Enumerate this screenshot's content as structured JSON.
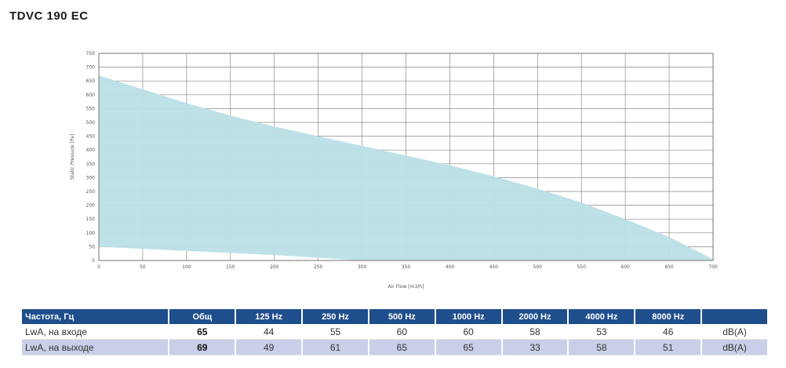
{
  "title": "TDVC 190 EC",
  "chart_data": {
    "type": "area",
    "xlabel": "Air Flow [m3/h]",
    "ylabel": "Static Pressure [Pa]",
    "xlim": [
      0,
      700
    ],
    "ylim": [
      0,
      750
    ],
    "x_ticks": [
      0,
      50,
      100,
      150,
      200,
      250,
      300,
      350,
      400,
      450,
      500,
      550,
      600,
      650,
      700
    ],
    "y_ticks": [
      0,
      50,
      100,
      150,
      200,
      250,
      300,
      350,
      400,
      450,
      500,
      550,
      600,
      650,
      700,
      750
    ],
    "grid": true,
    "fill_color": "#b9dfe6",
    "upper_curve": [
      {
        "x": 0,
        "y": 670
      },
      {
        "x": 50,
        "y": 620
      },
      {
        "x": 100,
        "y": 570
      },
      {
        "x": 150,
        "y": 525
      },
      {
        "x": 200,
        "y": 485
      },
      {
        "x": 250,
        "y": 450
      },
      {
        "x": 300,
        "y": 415
      },
      {
        "x": 350,
        "y": 380
      },
      {
        "x": 400,
        "y": 345
      },
      {
        "x": 450,
        "y": 305
      },
      {
        "x": 500,
        "y": 260
      },
      {
        "x": 550,
        "y": 210
      },
      {
        "x": 600,
        "y": 150
      },
      {
        "x": 650,
        "y": 85
      },
      {
        "x": 700,
        "y": 5
      }
    ],
    "lower_curve": [
      {
        "x": 0,
        "y": 50
      },
      {
        "x": 100,
        "y": 35
      },
      {
        "x": 200,
        "y": 20
      },
      {
        "x": 300,
        "y": 0
      },
      {
        "x": 700,
        "y": 0
      }
    ]
  },
  "table": {
    "headers": [
      "Частота, Гц",
      "Общ",
      "125 Hz",
      "250 Hz",
      "500 Hz",
      "1000 Hz",
      "2000 Hz",
      "4000 Hz",
      "8000 Hz",
      ""
    ],
    "rows": [
      {
        "label": "LwA, на входе",
        "total": "65",
        "values": [
          "44",
          "55",
          "60",
          "60",
          "58",
          "53",
          "46"
        ],
        "unit": "dB(A)"
      },
      {
        "label": "LwA, на выходе",
        "total": "69",
        "values": [
          "49",
          "61",
          "65",
          "65",
          "33",
          "58",
          "51"
        ],
        "unit": "dB(A)"
      }
    ]
  }
}
